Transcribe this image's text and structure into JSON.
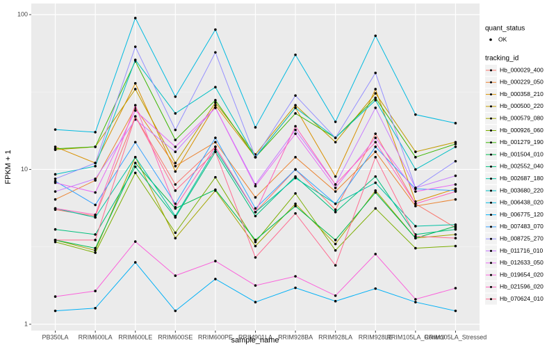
{
  "chart_data": {
    "type": "line",
    "x_label": "sample_name",
    "y_label": "FPKM + 1",
    "log_scale": true,
    "grid": true,
    "categories": [
      "PB350LA",
      "RRIM600LA",
      "RRIM600LE",
      "RRIM600SE",
      "RRIM600PE",
      "RRIM901LA",
      "RRIM928BA",
      "RRIM928LA",
      "RRIM928LE",
      "RRIM105LA_Control",
      "RRIM105LA_Stressed"
    ],
    "ylim": [
      0.91,
      118
    ],
    "yticks": [
      1,
      10,
      100
    ],
    "shape_legend": {
      "title": "quant_status",
      "labels": [
        "OK"
      ]
    },
    "legend_title": "tracking_id",
    "series": [
      {
        "name": "Hb_000029_400",
        "color": "#F8766D",
        "values": [
          5.5,
          5.0,
          22,
          8.0,
          14,
          5.3,
          10,
          5.5,
          17,
          6.0,
          4.2
        ]
      },
      {
        "name": "Hb_000229_050",
        "color": "#EA8331",
        "values": [
          6.4,
          8.5,
          25,
          10.5,
          15,
          6.6,
          12,
          7.2,
          13,
          5.8,
          6.4
        ]
      },
      {
        "name": "Hb_000358_210",
        "color": "#D89000",
        "values": [
          14.0,
          11,
          36,
          9.7,
          26,
          12,
          25,
          9,
          33,
          6.2,
          7.5
        ]
      },
      {
        "name": "Hb_000500_220",
        "color": "#C09B00",
        "values": [
          13.4,
          14,
          33,
          11,
          27,
          12.5,
          26,
          15,
          31,
          13,
          15
        ]
      },
      {
        "name": "Hb_000579_080",
        "color": "#A3A500",
        "values": [
          3.5,
          3.0,
          12,
          3.6,
          7.3,
          3.2,
          6.0,
          3.3,
          7.3,
          3.6,
          3.8
        ]
      },
      {
        "name": "Hb_000926_060",
        "color": "#7CAE00",
        "values": [
          3.4,
          2.9,
          9.5,
          3.9,
          8.9,
          3.4,
          7.0,
          3.0,
          5.6,
          3.1,
          3.2
        ]
      },
      {
        "name": "Hb_001279_190",
        "color": "#39B600",
        "values": [
          13.6,
          14,
          50,
          15.5,
          28,
          12,
          23,
          16,
          29,
          12,
          14.6
        ]
      },
      {
        "name": "Hb_001504_010",
        "color": "#00BB4E",
        "values": [
          3.5,
          3.1,
          11,
          5.6,
          7.4,
          3.5,
          5.8,
          3.5,
          7.1,
          3.6,
          4.3
        ]
      },
      {
        "name": "Hb_002552_040",
        "color": "#00BF7D",
        "values": [
          4.1,
          3.8,
          10.4,
          4.9,
          13,
          5.0,
          9.0,
          5.3,
          9.0,
          3.8,
          4.1
        ]
      },
      {
        "name": "Hb_002687_180",
        "color": "#00C1A3",
        "values": [
          5.6,
          4.9,
          12,
          5.0,
          13.5,
          5.3,
          8.8,
          6.0,
          8.2,
          4.3,
          4.4
        ]
      },
      {
        "name": "Hb_003680_220",
        "color": "#00BFC4",
        "values": [
          9.3,
          10.5,
          51,
          23,
          34,
          12,
          25,
          16,
          28,
          10,
          14
        ]
      },
      {
        "name": "Hb_006438_020",
        "color": "#00BAE0",
        "values": [
          18.1,
          17.4,
          95,
          29.5,
          80,
          18.7,
          55,
          20.3,
          73,
          22.6,
          19.9
        ]
      },
      {
        "name": "Hb_006775_120",
        "color": "#00B0F6",
        "values": [
          1.22,
          1.27,
          2.51,
          1.22,
          1.96,
          1.39,
          1.72,
          1.41,
          1.7,
          1.39,
          1.22
        ]
      },
      {
        "name": "Hb_007483_070",
        "color": "#35A2FF",
        "values": [
          8.4,
          5.9,
          15,
          6.0,
          16,
          5.6,
          10,
          6.0,
          14,
          7.5,
          7.3
        ]
      },
      {
        "name": "Hb_008725_270",
        "color": "#9590FF",
        "values": [
          8.7,
          11,
          62,
          18,
          57,
          12,
          30,
          16,
          42,
          7.6,
          11.3
        ]
      },
      {
        "name": "Hb_011716_010",
        "color": "#C77CFF",
        "values": [
          7.2,
          8.7,
          21,
          13,
          25,
          8.0,
          18,
          8.0,
          25,
          7.6,
          9.1
        ]
      },
      {
        "name": "Hb_012633_050",
        "color": "#E76BF3",
        "values": [
          8.2,
          7.1,
          24,
          14,
          25,
          7.8,
          17,
          7.6,
          16,
          7.2,
          8.0
        ]
      },
      {
        "name": "Hb_019654_020",
        "color": "#FA62DB",
        "values": [
          1.51,
          1.64,
          3.42,
          2.06,
          2.56,
          1.78,
          2.04,
          1.53,
          2.84,
          1.45,
          1.71
        ]
      },
      {
        "name": "Hb_021596_020",
        "color": "#FF62BC",
        "values": [
          5.6,
          5.1,
          26,
          5.7,
          14,
          5.3,
          19,
          8.0,
          15,
          6.0,
          7.2
        ]
      },
      {
        "name": "Hb_070624_010",
        "color": "#FF6C91",
        "values": [
          3.5,
          3.5,
          22,
          7.3,
          13,
          2.7,
          5.2,
          2.4,
          12,
          3.7,
          3.6
        ]
      }
    ]
  }
}
